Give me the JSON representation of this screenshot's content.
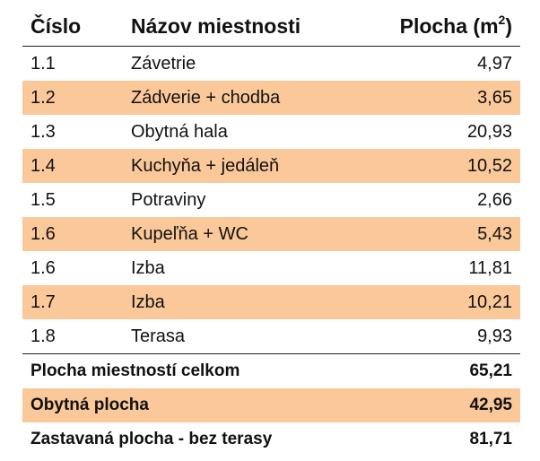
{
  "header": {
    "col_number": "Číslo",
    "col_name": "Názov miestnosti",
    "col_area_prefix": "Plocha (m",
    "col_area_sup": "2",
    "col_area_suffix": ")"
  },
  "rows": [
    {
      "number": "1.1",
      "name": "Závetrie",
      "area": "4,97"
    },
    {
      "number": "1.2",
      "name": "Zádverie + chodba",
      "area": "3,65"
    },
    {
      "number": "1.3",
      "name": "Obytná hala",
      "area": "20,93"
    },
    {
      "number": "1.4",
      "name": "Kuchyňa + jedáleň",
      "area": "10,52"
    },
    {
      "number": "1.5",
      "name": "Potraviny",
      "area": "2,66"
    },
    {
      "number": "1.6",
      "name": "Kupeľňa + WC",
      "area": "5,43"
    },
    {
      "number": "1.6",
      "name": "Izba",
      "area": "11,81"
    },
    {
      "number": "1.7",
      "name": "Izba",
      "area": "10,21"
    },
    {
      "number": "1.8",
      "name": "Terasa",
      "area": "9,93"
    }
  ],
  "totals": [
    {
      "label": "Plocha miestností celkom",
      "value": "65,21"
    },
    {
      "label": "Obytná plocha",
      "value": "42,95"
    },
    {
      "label": "Zastavaná plocha - bez terasy",
      "value": "81,71"
    }
  ],
  "colors": {
    "stripe": "#fbc89a",
    "text": "#111111"
  }
}
